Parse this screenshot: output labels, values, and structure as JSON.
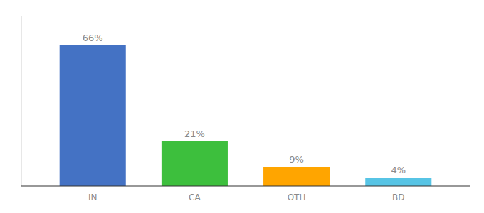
{
  "chart_data": {
    "type": "bar",
    "categories": [
      "IN",
      "CA",
      "OTH",
      "BD"
    ],
    "values": [
      66,
      21,
      9,
      4
    ],
    "value_labels": [
      "66%",
      "21%",
      "9%",
      "4%"
    ],
    "colors": [
      "#4472C4",
      "#3DBF3D",
      "#FFA500",
      "#57C4E5"
    ],
    "ylim": [
      0,
      80
    ],
    "data_labels": true,
    "tick_labels": "x"
  }
}
